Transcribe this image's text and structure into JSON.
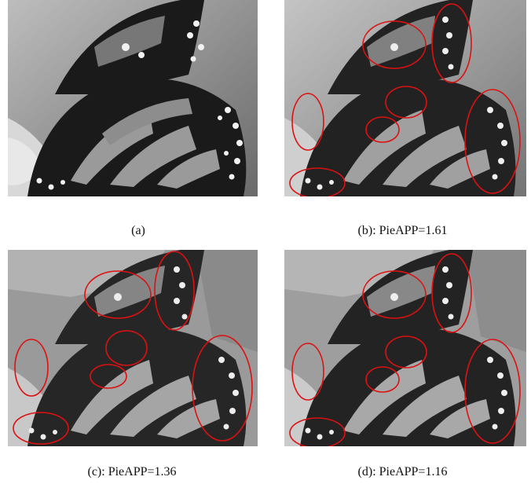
{
  "figure": {
    "panels": [
      {
        "id": "a",
        "caption": "(a)",
        "circle_color": "#dd1111",
        "style": "original"
      },
      {
        "id": "b",
        "caption": "(b): PieAPP=1.61",
        "circle_color": "#dd1111",
        "style": "smooth"
      },
      {
        "id": "c",
        "caption": "(c): PieAPP=1.36",
        "circle_color": "#dd1111",
        "style": "posterized"
      },
      {
        "id": "d",
        "caption": "(d): PieAPP=1.16",
        "circle_color": "#dd1111",
        "style": "posterized"
      }
    ]
  }
}
